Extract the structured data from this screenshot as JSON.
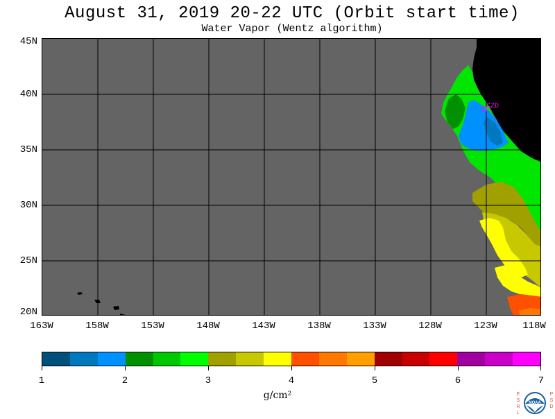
{
  "title": "August 31, 2019  20-22 UTC  (Orbit start time)",
  "subtitle": "Water Vapor (Wentz algorithm)",
  "map": {
    "lat_labels": [
      "45N",
      "40N",
      "35N",
      "30N",
      "25N",
      "20N"
    ],
    "lon_labels": [
      "163W",
      "158W",
      "153W",
      "148W",
      "143W",
      "138W",
      "133W",
      "128W",
      "123W",
      "118W"
    ],
    "lat_range": [
      20,
      45
    ],
    "lon_range": [
      -163,
      -118
    ],
    "city_label": "CZD",
    "background_color": "#646464",
    "land_color": "#000000",
    "grid": true
  },
  "colorbar": {
    "labels": [
      "1",
      "2",
      "3",
      "4",
      "5",
      "6",
      "7"
    ],
    "unit": "g/cm²",
    "colors": [
      "#00507c",
      "#0078c0",
      "#0090ff",
      "#009000",
      "#00c800",
      "#00ff00",
      "#a0a000",
      "#c8c800",
      "#ffff00",
      "#ff5000",
      "#ff7800",
      "#ffa000",
      "#a00000",
      "#c80000",
      "#ff0000",
      "#a000a0",
      "#c800c8",
      "#ff00ff"
    ]
  }
}
